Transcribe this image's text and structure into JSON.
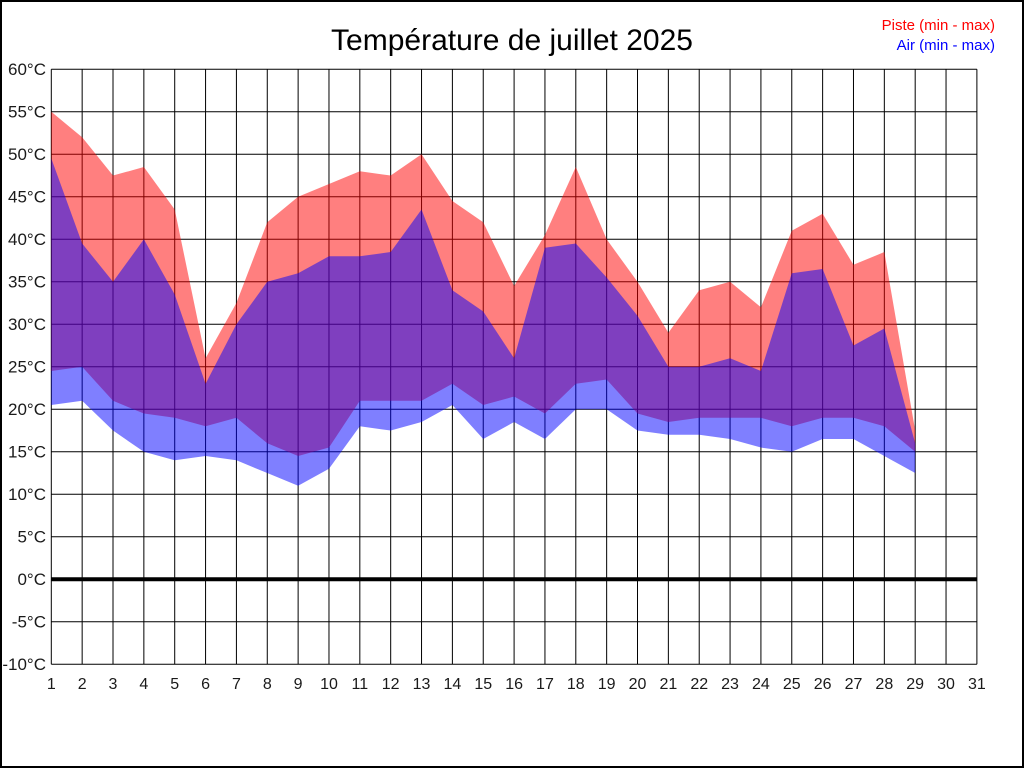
{
  "chart_data": {
    "type": "area",
    "title": "Température de juillet 2025",
    "legend": [
      {
        "label": "Piste (min - max)",
        "color": "#ff0000"
      },
      {
        "label": "Air (min - max)",
        "color": "#0000ff"
      }
    ],
    "x_min": 1,
    "x_max": 31,
    "y_min": -10,
    "y_max": 60,
    "y_step": 5,
    "grid": true,
    "zero_line": true,
    "y_tick_labels": [
      "60°C",
      "55°C",
      "50°C",
      "45°C",
      "40°C",
      "35°C",
      "30°C",
      "25°C",
      "20°C",
      "15°C",
      "10°C",
      "5°C",
      "0°C",
      "-5°C",
      "-10°C"
    ],
    "x_tick_labels": [
      "1",
      "2",
      "3",
      "4",
      "5",
      "6",
      "7",
      "8",
      "9",
      "10",
      "11",
      "12",
      "13",
      "14",
      "15",
      "16",
      "17",
      "18",
      "19",
      "20",
      "21",
      "22",
      "23",
      "24",
      "25",
      "26",
      "27",
      "28",
      "29",
      "30",
      "31"
    ],
    "days": [
      1,
      2,
      3,
      4,
      5,
      6,
      7,
      8,
      9,
      10,
      11,
      12,
      13,
      14,
      15,
      16,
      17,
      18,
      19,
      20,
      21,
      22,
      23,
      24,
      25,
      26,
      27,
      28,
      29
    ],
    "series_bands": [
      {
        "name": "piste",
        "label": "Piste (min - max)",
        "color": "#ff0000",
        "opacity": 0.5,
        "max": [
          55,
          52,
          47.5,
          48.5,
          43.5,
          26,
          32.5,
          42,
          45,
          46.5,
          48,
          47.5,
          50,
          44.5,
          42,
          34.5,
          40.5,
          48.5,
          40,
          35,
          29,
          34,
          35,
          32,
          41,
          43,
          37,
          38.5,
          17.5
        ],
        "min": [
          24.5,
          25,
          21,
          19.5,
          19,
          18,
          19,
          16,
          14.5,
          15.5,
          21,
          21,
          21,
          23,
          20.5,
          21.5,
          19.5,
          23,
          23.5,
          19.5,
          18.5,
          19,
          19,
          19,
          18,
          19,
          19,
          18,
          15
        ]
      },
      {
        "name": "air",
        "label": "Air (min - max)",
        "color": "#0000ff",
        "opacity": 0.5,
        "max": [
          49.5,
          39.5,
          35,
          40,
          33.5,
          23,
          30,
          35,
          36,
          38,
          38,
          38.5,
          43.5,
          34,
          31.5,
          26,
          39,
          39.5,
          35.5,
          31,
          25,
          25,
          26,
          24.5,
          36,
          36.5,
          27.5,
          29.5,
          16
        ],
        "min": [
          20.5,
          21,
          17.5,
          15,
          14,
          14.5,
          14,
          12.5,
          11,
          13,
          18,
          17.5,
          18.5,
          20.5,
          16.5,
          18.5,
          16.5,
          20,
          20,
          17.5,
          17,
          17,
          16.5,
          15.5,
          15,
          16.5,
          16.5,
          14.5,
          12.5
        ]
      }
    ]
  }
}
